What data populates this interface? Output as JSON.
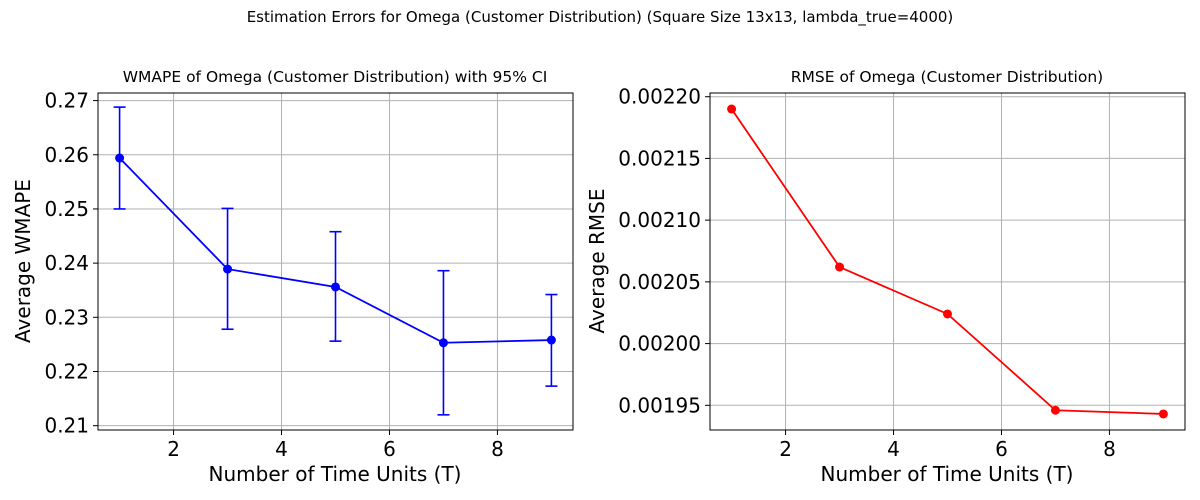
{
  "figure": {
    "suptitle": "Estimation Errors for Omega (Customer Distribution) (Square Size 13x13, lambda_true=4000)"
  },
  "chart_data": [
    {
      "type": "line",
      "title": "WMAPE of Omega (Customer Distribution) with 95% CI",
      "xlabel": "Number of Time Units (T)",
      "ylabel": "Average WMAPE",
      "x": [
        1,
        3,
        5,
        7,
        9
      ],
      "series": [
        {
          "values": [
            0.2594,
            0.2389,
            0.2356,
            0.2253,
            0.2258
          ],
          "ci_lower": [
            0.25,
            0.2278,
            0.2256,
            0.212,
            0.2173
          ],
          "ci_upper": [
            0.2688,
            0.2501,
            0.2458,
            0.2386,
            0.2342
          ],
          "color": "#0000ff",
          "marker": "circle"
        }
      ],
      "xlim": [
        0.6,
        9.4
      ],
      "ylim": [
        0.2092,
        0.2714
      ],
      "xticks": [
        "2",
        "4",
        "6",
        "8"
      ],
      "xtick_values": [
        2,
        4,
        6,
        8
      ],
      "yticks": [
        "0.21",
        "0.22",
        "0.23",
        "0.24",
        "0.25",
        "0.26",
        "0.27"
      ],
      "ytick_values": [
        0.21,
        0.22,
        0.23,
        0.24,
        0.25,
        0.26,
        0.27
      ],
      "grid": true
    },
    {
      "type": "line",
      "title": "RMSE of Omega (Customer Distribution)",
      "xlabel": "Number of Time Units (T)",
      "ylabel": "Average RMSE",
      "x": [
        1,
        3,
        5,
        7,
        9
      ],
      "series": [
        {
          "values": [
            0.00219,
            0.002062,
            0.002024,
            0.001946,
            0.001943
          ],
          "color": "#ff0000",
          "marker": "circle"
        }
      ],
      "xlim": [
        0.6,
        9.4
      ],
      "ylim": [
        0.00193,
        0.002203
      ],
      "xticks": [
        "2",
        "4",
        "6",
        "8"
      ],
      "xtick_values": [
        2,
        4,
        6,
        8
      ],
      "yticks": [
        "0.00195",
        "0.00200",
        "0.00205",
        "0.00210",
        "0.00215",
        "0.00220"
      ],
      "ytick_values": [
        0.00195,
        0.002,
        0.00205,
        0.0021,
        0.00215,
        0.0022
      ],
      "grid": true
    }
  ]
}
